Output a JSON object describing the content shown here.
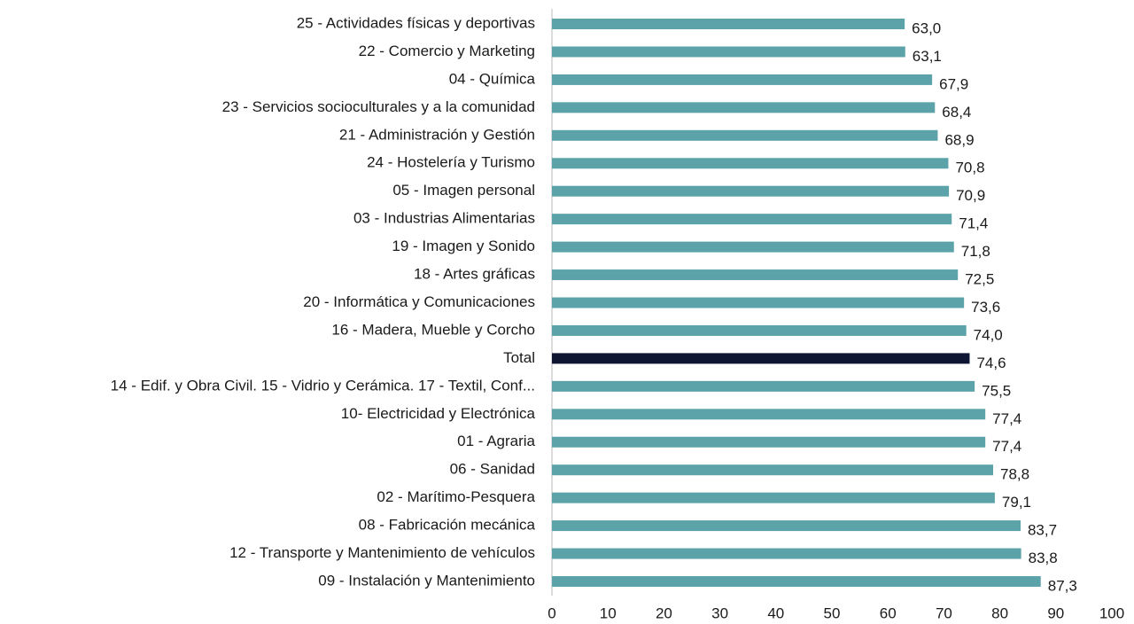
{
  "chart_data": {
    "type": "barh",
    "categories": [
      "25 - Actividades físicas y deportivas",
      "22 - Comercio y Marketing",
      "04 - Química",
      "23 - Servicios socioculturales y a la comunidad",
      "21 - Administración y Gestión",
      "24 - Hostelería y Turismo",
      "05 - Imagen personal",
      "03 - Industrias Alimentarias",
      "19 - Imagen y Sonido",
      "18 - Artes gráficas",
      "20 - Informática y Comunicaciones",
      "16 - Madera, Mueble y Corcho",
      "Total",
      "14 - Edif. y Obra Civil. 15 - Vidrio y Cerámica. 17 - Textil, Conf...",
      "10- Electricidad y Electrónica",
      "01 - Agraria",
      "06 - Sanidad",
      "02 - Marítimo-Pesquera",
      "08 - Fabricación mecánica",
      "12 - Transporte y Mantenimiento de vehículos",
      "09 - Instalación y Mantenimiento"
    ],
    "values": [
      63.0,
      63.1,
      67.9,
      68.4,
      68.9,
      70.8,
      70.9,
      71.4,
      71.8,
      72.5,
      73.6,
      74.0,
      74.6,
      75.5,
      77.4,
      77.4,
      78.8,
      79.1,
      83.7,
      83.8,
      87.3
    ],
    "value_labels": [
      "63,0",
      "63,1",
      "67,9",
      "68,4",
      "68,9",
      "70,8",
      "70,9",
      "71,4",
      "71,8",
      "72,5",
      "73,6",
      "74,0",
      "74,6",
      "75,5",
      "77,4",
      "77,4",
      "78,8",
      "79,1",
      "83,7",
      "83,8",
      "87,3"
    ],
    "colors": [
      "#5ba3a9",
      "#5ba3a9",
      "#5ba3a9",
      "#5ba3a9",
      "#5ba3a9",
      "#5ba3a9",
      "#5ba3a9",
      "#5ba3a9",
      "#5ba3a9",
      "#5ba3a9",
      "#5ba3a9",
      "#5ba3a9",
      "#0d1533",
      "#5ba3a9",
      "#5ba3a9",
      "#5ba3a9",
      "#5ba3a9",
      "#5ba3a9",
      "#5ba3a9",
      "#5ba3a9",
      "#5ba3a9"
    ],
    "xlim": [
      0,
      100
    ],
    "xticks": [
      0,
      10,
      20,
      30,
      40,
      50,
      60,
      70,
      80,
      90,
      100
    ],
    "grid": false
  }
}
